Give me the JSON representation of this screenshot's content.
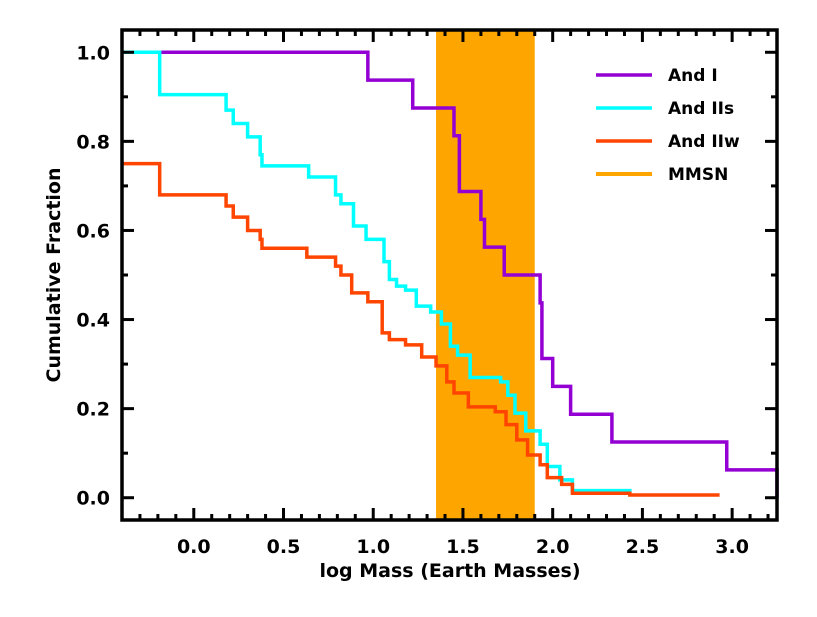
{
  "chart_data": {
    "type": "line",
    "step": true,
    "title": "",
    "xlabel": "log Mass (Earth Masses)",
    "ylabel": "Cumulative Fraction",
    "xlim": [
      -0.4,
      3.25
    ],
    "ylim": [
      -0.05,
      1.05
    ],
    "xticks": [
      "0.0",
      "0.5",
      "1.0",
      "1.5",
      "2.0",
      "2.5",
      "3.0"
    ],
    "yticks": [
      "0.0",
      "0.2",
      "0.4",
      "0.6",
      "0.8",
      "1.0"
    ],
    "grid": false,
    "legend_position": "top-right",
    "shaded_band": {
      "name": "MMSN",
      "x_range": [
        1.35,
        1.9
      ],
      "color": "#FFA500"
    },
    "series": [
      {
        "name": "And I",
        "color": "#9400D3",
        "points": [
          [
            -0.4,
            1.0
          ],
          [
            0.97,
            0.9375
          ],
          [
            1.22,
            0.875
          ],
          [
            1.45,
            0.8125
          ],
          [
            1.48,
            0.6875
          ],
          [
            1.6,
            0.625
          ],
          [
            1.62,
            0.5625
          ],
          [
            1.73,
            0.5
          ],
          [
            1.93,
            0.4375
          ],
          [
            1.94,
            0.3125
          ],
          [
            2.0,
            0.25
          ],
          [
            2.1,
            0.1875
          ],
          [
            2.33,
            0.125
          ],
          [
            2.97,
            0.0625
          ],
          [
            3.25,
            0.0
          ]
        ],
        "end": 3.25
      },
      {
        "name": "And IIs",
        "color": "#00FFFF",
        "points": [
          [
            -0.4,
            1.0
          ],
          [
            -0.19,
            0.905
          ],
          [
            0.18,
            0.87
          ],
          [
            0.22,
            0.84
          ],
          [
            0.3,
            0.81
          ],
          [
            0.37,
            0.77
          ],
          [
            0.38,
            0.745
          ],
          [
            0.64,
            0.72
          ],
          [
            0.79,
            0.68
          ],
          [
            0.82,
            0.66
          ],
          [
            0.89,
            0.61
          ],
          [
            0.96,
            0.58
          ],
          [
            1.06,
            0.53
          ],
          [
            1.09,
            0.49
          ],
          [
            1.13,
            0.475
          ],
          [
            1.18,
            0.466
          ],
          [
            1.24,
            0.43
          ],
          [
            1.32,
            0.417
          ],
          [
            1.38,
            0.39
          ],
          [
            1.43,
            0.34
          ],
          [
            1.47,
            0.32
          ],
          [
            1.54,
            0.27
          ],
          [
            1.71,
            0.26
          ],
          [
            1.75,
            0.23
          ],
          [
            1.79,
            0.19
          ],
          [
            1.85,
            0.15
          ],
          [
            1.93,
            0.12
          ],
          [
            1.97,
            0.07
          ],
          [
            2.04,
            0.04
          ],
          [
            2.11,
            0.016
          ],
          [
            2.43,
            0.012
          ]
        ],
        "end": 2.43
      },
      {
        "name": "And IIw",
        "color": "#FF4500",
        "points": [
          [
            -0.4,
            0.75
          ],
          [
            -0.19,
            0.68
          ],
          [
            0.18,
            0.655
          ],
          [
            0.22,
            0.63
          ],
          [
            0.3,
            0.6
          ],
          [
            0.37,
            0.58
          ],
          [
            0.38,
            0.56
          ],
          [
            0.63,
            0.54
          ],
          [
            0.79,
            0.52
          ],
          [
            0.82,
            0.5
          ],
          [
            0.88,
            0.46
          ],
          [
            0.97,
            0.44
          ],
          [
            1.05,
            0.37
          ],
          [
            1.09,
            0.355
          ],
          [
            1.18,
            0.343
          ],
          [
            1.27,
            0.316
          ],
          [
            1.35,
            0.296
          ],
          [
            1.41,
            0.26
          ],
          [
            1.45,
            0.235
          ],
          [
            1.53,
            0.204
          ],
          [
            1.68,
            0.193
          ],
          [
            1.74,
            0.164
          ],
          [
            1.8,
            0.13
          ],
          [
            1.86,
            0.096
          ],
          [
            1.93,
            0.074
          ],
          [
            1.97,
            0.045
          ],
          [
            2.05,
            0.03
          ],
          [
            2.11,
            0.01
          ],
          [
            2.43,
            0.006
          ]
        ],
        "end": 2.93
      }
    ]
  }
}
